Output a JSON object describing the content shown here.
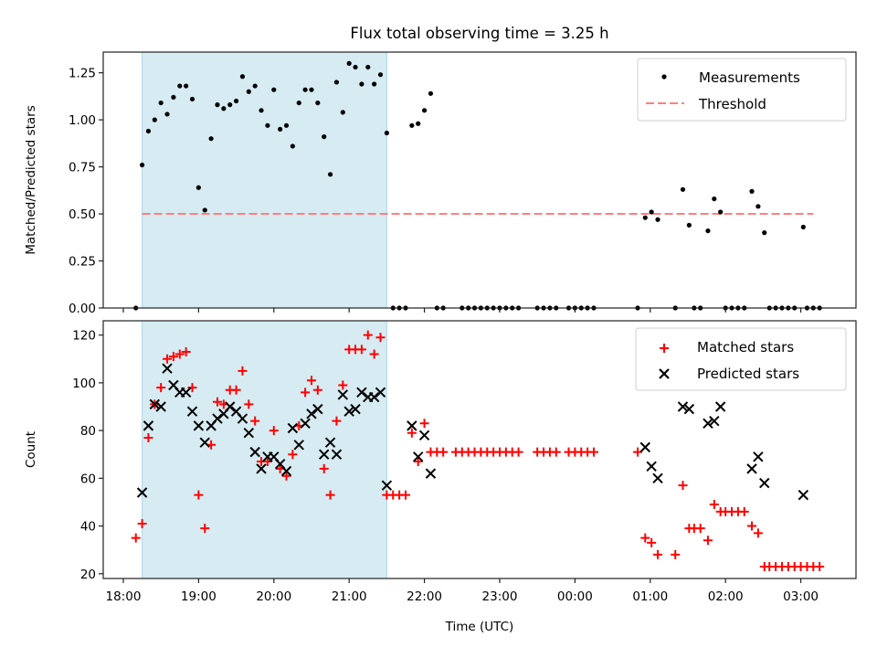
{
  "figure": {
    "title": "Flux total observing time = 3.25 h",
    "time_axis": {
      "label": "Time (UTC)",
      "ticks": [
        "18:00",
        "19:00",
        "20:00",
        "21:00",
        "22:00",
        "23:00",
        "00:00",
        "01:00",
        "02:00",
        "03:00"
      ],
      "tick_minutes_after_18h": [
        0,
        60,
        120,
        180,
        240,
        300,
        360,
        420,
        480,
        540
      ],
      "range_minutes_after_18h": [
        -16,
        584
      ]
    },
    "shaded_interval": {
      "start": "18:15",
      "end": "21:30",
      "start_min": 15,
      "end_min": 210,
      "color": "#add8e6"
    }
  },
  "chart_data": [
    {
      "type": "scatter",
      "panel": "top",
      "title": "Flux total observing time = 3.25 h",
      "xlabel": "",
      "ylabel": "Matched/Predicted stars",
      "ylim": [
        0,
        1.36
      ],
      "yticks": [
        "0.00",
        "0.25",
        "0.50",
        "0.75",
        "1.00",
        "1.25"
      ],
      "ytick_values": [
        0,
        0.25,
        0.5,
        0.75,
        1.0,
        1.25
      ],
      "legend": {
        "placement": "top-right",
        "entries": [
          {
            "label": "Measurements",
            "marker": "dot",
            "color": "#000000"
          },
          {
            "label": "Threshold",
            "marker": "dashed-line",
            "color": "#ff7f7f"
          }
        ]
      },
      "threshold": {
        "value": 0.5,
        "x_start_min": 15,
        "x_end_min": 550,
        "color": "#ff7f7f"
      },
      "series": [
        {
          "name": "Measurements",
          "color": "#000000",
          "x_min": [
            10,
            15,
            20,
            25,
            30,
            35,
            40,
            45,
            50,
            55,
            60,
            65,
            70,
            75,
            80,
            85,
            90,
            95,
            100,
            105,
            110,
            115,
            120,
            125,
            130,
            135,
            140,
            145,
            150,
            155,
            160,
            165,
            170,
            175,
            180,
            185,
            190,
            195,
            200,
            205,
            210,
            215,
            220,
            225,
            230,
            235,
            240,
            245,
            250,
            255,
            270,
            275,
            280,
            285,
            290,
            295,
            300,
            305,
            310,
            315,
            330,
            335,
            340,
            345,
            355,
            360,
            365,
            370,
            375,
            410,
            416,
            421,
            426,
            440,
            446,
            451,
            455,
            460,
            466,
            471,
            476,
            480,
            485,
            490,
            495,
            501,
            506,
            511,
            515,
            520,
            525,
            530,
            535,
            542,
            545,
            550,
            555
          ],
          "values": [
            0,
            0.76,
            0.94,
            1.0,
            1.09,
            1.03,
            1.12,
            1.18,
            1.18,
            1.11,
            0.64,
            0.52,
            0.9,
            1.08,
            1.06,
            1.08,
            1.1,
            1.23,
            1.15,
            1.18,
            1.05,
            0.97,
            1.16,
            0.95,
            0.97,
            0.86,
            1.09,
            1.16,
            1.16,
            1.09,
            0.91,
            0.71,
            1.2,
            1.04,
            1.3,
            1.28,
            1.19,
            1.28,
            1.19,
            1.24,
            0.93,
            0,
            0,
            0,
            0.97,
            0.98,
            1.05,
            1.14,
            0,
            0,
            0,
            0,
            0,
            0,
            0,
            0,
            0,
            0,
            0,
            0,
            0,
            0,
            0,
            0,
            0,
            0,
            0,
            0,
            0,
            0,
            0.48,
            0.51,
            0.47,
            0,
            0.63,
            0.44,
            0,
            0,
            0.41,
            0.58,
            0.51,
            0,
            0,
            0,
            0,
            0.62,
            0.54,
            0.4,
            0,
            0,
            0,
            0,
            0,
            0.43,
            0,
            0,
            0
          ]
        }
      ]
    },
    {
      "type": "scatter",
      "panel": "bottom",
      "xlabel": "Time (UTC)",
      "ylabel": "Count",
      "ylim": [
        18,
        126
      ],
      "yticks": [
        "20",
        "40",
        "60",
        "80",
        "100",
        "120"
      ],
      "ytick_values": [
        20,
        40,
        60,
        80,
        100,
        120
      ],
      "legend": {
        "placement": "top-right",
        "entries": [
          {
            "label": "Matched stars",
            "marker": "plus",
            "color": "#ff0000"
          },
          {
            "label": "Predicted stars",
            "marker": "x",
            "color": "#000000"
          }
        ]
      },
      "series": [
        {
          "name": "Matched stars",
          "color": "#ff0000",
          "marker": "plus",
          "x_min": [
            10,
            15,
            20,
            25,
            30,
            35,
            40,
            45,
            50,
            55,
            60,
            65,
            70,
            75,
            80,
            85,
            90,
            95,
            100,
            105,
            110,
            115,
            120,
            125,
            130,
            135,
            140,
            145,
            150,
            155,
            160,
            165,
            170,
            175,
            180,
            185,
            190,
            195,
            200,
            205,
            210,
            215,
            220,
            225,
            230,
            235,
            240,
            245,
            250,
            255,
            265,
            270,
            275,
            280,
            285,
            290,
            295,
            300,
            305,
            310,
            315,
            330,
            335,
            340,
            345,
            355,
            360,
            365,
            370,
            375,
            410,
            416,
            421,
            426,
            440,
            446,
            451,
            455,
            460,
            466,
            471,
            476,
            480,
            485,
            490,
            495,
            501,
            506,
            511,
            515,
            520,
            525,
            530,
            535,
            540,
            545,
            550,
            555
          ],
          "values": [
            35,
            41,
            77,
            91,
            98,
            110,
            111,
            112,
            113,
            98,
            53,
            39,
            74,
            92,
            91,
            97,
            97,
            105,
            91,
            84,
            67,
            67,
            80,
            64,
            61,
            70,
            82,
            96,
            101,
            97,
            64,
            53,
            84,
            99,
            114,
            114,
            114,
            120,
            112,
            119,
            53,
            53,
            53,
            53,
            79,
            67,
            83,
            71,
            71,
            71,
            71,
            71,
            71,
            71,
            71,
            71,
            71,
            71,
            71,
            71,
            71,
            71,
            71,
            71,
            71,
            71,
            71,
            71,
            71,
            71,
            71,
            35,
            33,
            28,
            28,
            57,
            39,
            39,
            39,
            34,
            49,
            46,
            46,
            46,
            46,
            46,
            40,
            37,
            23,
            23,
            23,
            23,
            23,
            23,
            23,
            23,
            23,
            23
          ]
        },
        {
          "name": "Predicted stars",
          "color": "#000000",
          "marker": "x",
          "x_min": [
            15,
            20,
            25,
            30,
            35,
            40,
            45,
            50,
            55,
            60,
            65,
            70,
            75,
            80,
            85,
            90,
            95,
            100,
            105,
            110,
            115,
            120,
            125,
            130,
            135,
            140,
            145,
            150,
            155,
            160,
            165,
            170,
            175,
            180,
            185,
            190,
            195,
            200,
            205,
            210,
            230,
            235,
            240,
            245,
            416,
            421,
            426,
            446,
            451,
            466,
            471,
            476,
            501,
            506,
            511,
            542
          ],
          "values": [
            54,
            82,
            91,
            90,
            106,
            99,
            96,
            96,
            88,
            82,
            75,
            82,
            85,
            87,
            90,
            88,
            85,
            79,
            71,
            64,
            69,
            69,
            66,
            63,
            81,
            74,
            83,
            87,
            89,
            70,
            75,
            70,
            95,
            88,
            89,
            96,
            94,
            94,
            96,
            57,
            82,
            69,
            78,
            62,
            73,
            65,
            60,
            90,
            89,
            83,
            84,
            90,
            64,
            69,
            58,
            53
          ]
        }
      ]
    }
  ]
}
